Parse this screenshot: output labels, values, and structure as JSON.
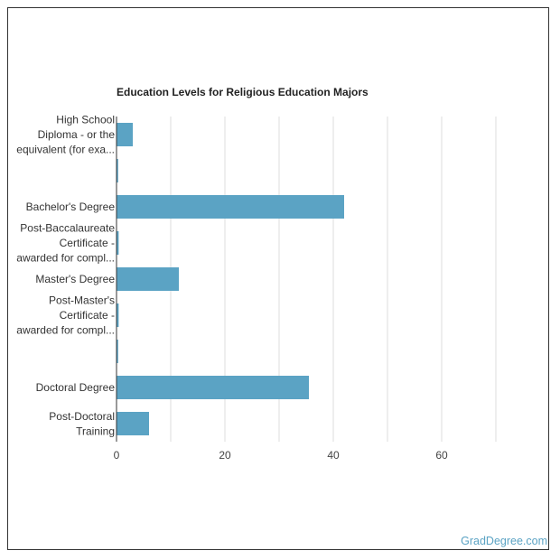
{
  "chart_data": {
    "type": "bar",
    "orientation": "horizontal",
    "title": "Education Levels for Religious Education Majors",
    "categories": [
      [
        "High School",
        "Diploma - or the",
        "equivalent (for exa..."
      ],
      [
        ""
      ],
      [
        "Bachelor's Degree"
      ],
      [
        "Post-Baccalaureate",
        "Certificate -",
        "awarded for compl..."
      ],
      [
        "Master's Degree"
      ],
      [
        "Post-Master's",
        "Certificate -",
        "awarded for compl..."
      ],
      [
        ""
      ],
      [
        "Doctoral Degree"
      ],
      [
        "Post-Doctoral",
        "Training"
      ]
    ],
    "values": [
      3,
      0.3,
      42,
      0.4,
      11.5,
      0.4,
      0.3,
      35.5,
      6
    ],
    "xlim": [
      0,
      70
    ],
    "xticks": [
      0,
      20,
      40,
      60
    ],
    "grid": true,
    "bar_color": "#5ba3c4",
    "grid_color": "#dddddd"
  },
  "footer": {
    "source": "GradDegree.com",
    "source_color": "#5ba3c4"
  }
}
